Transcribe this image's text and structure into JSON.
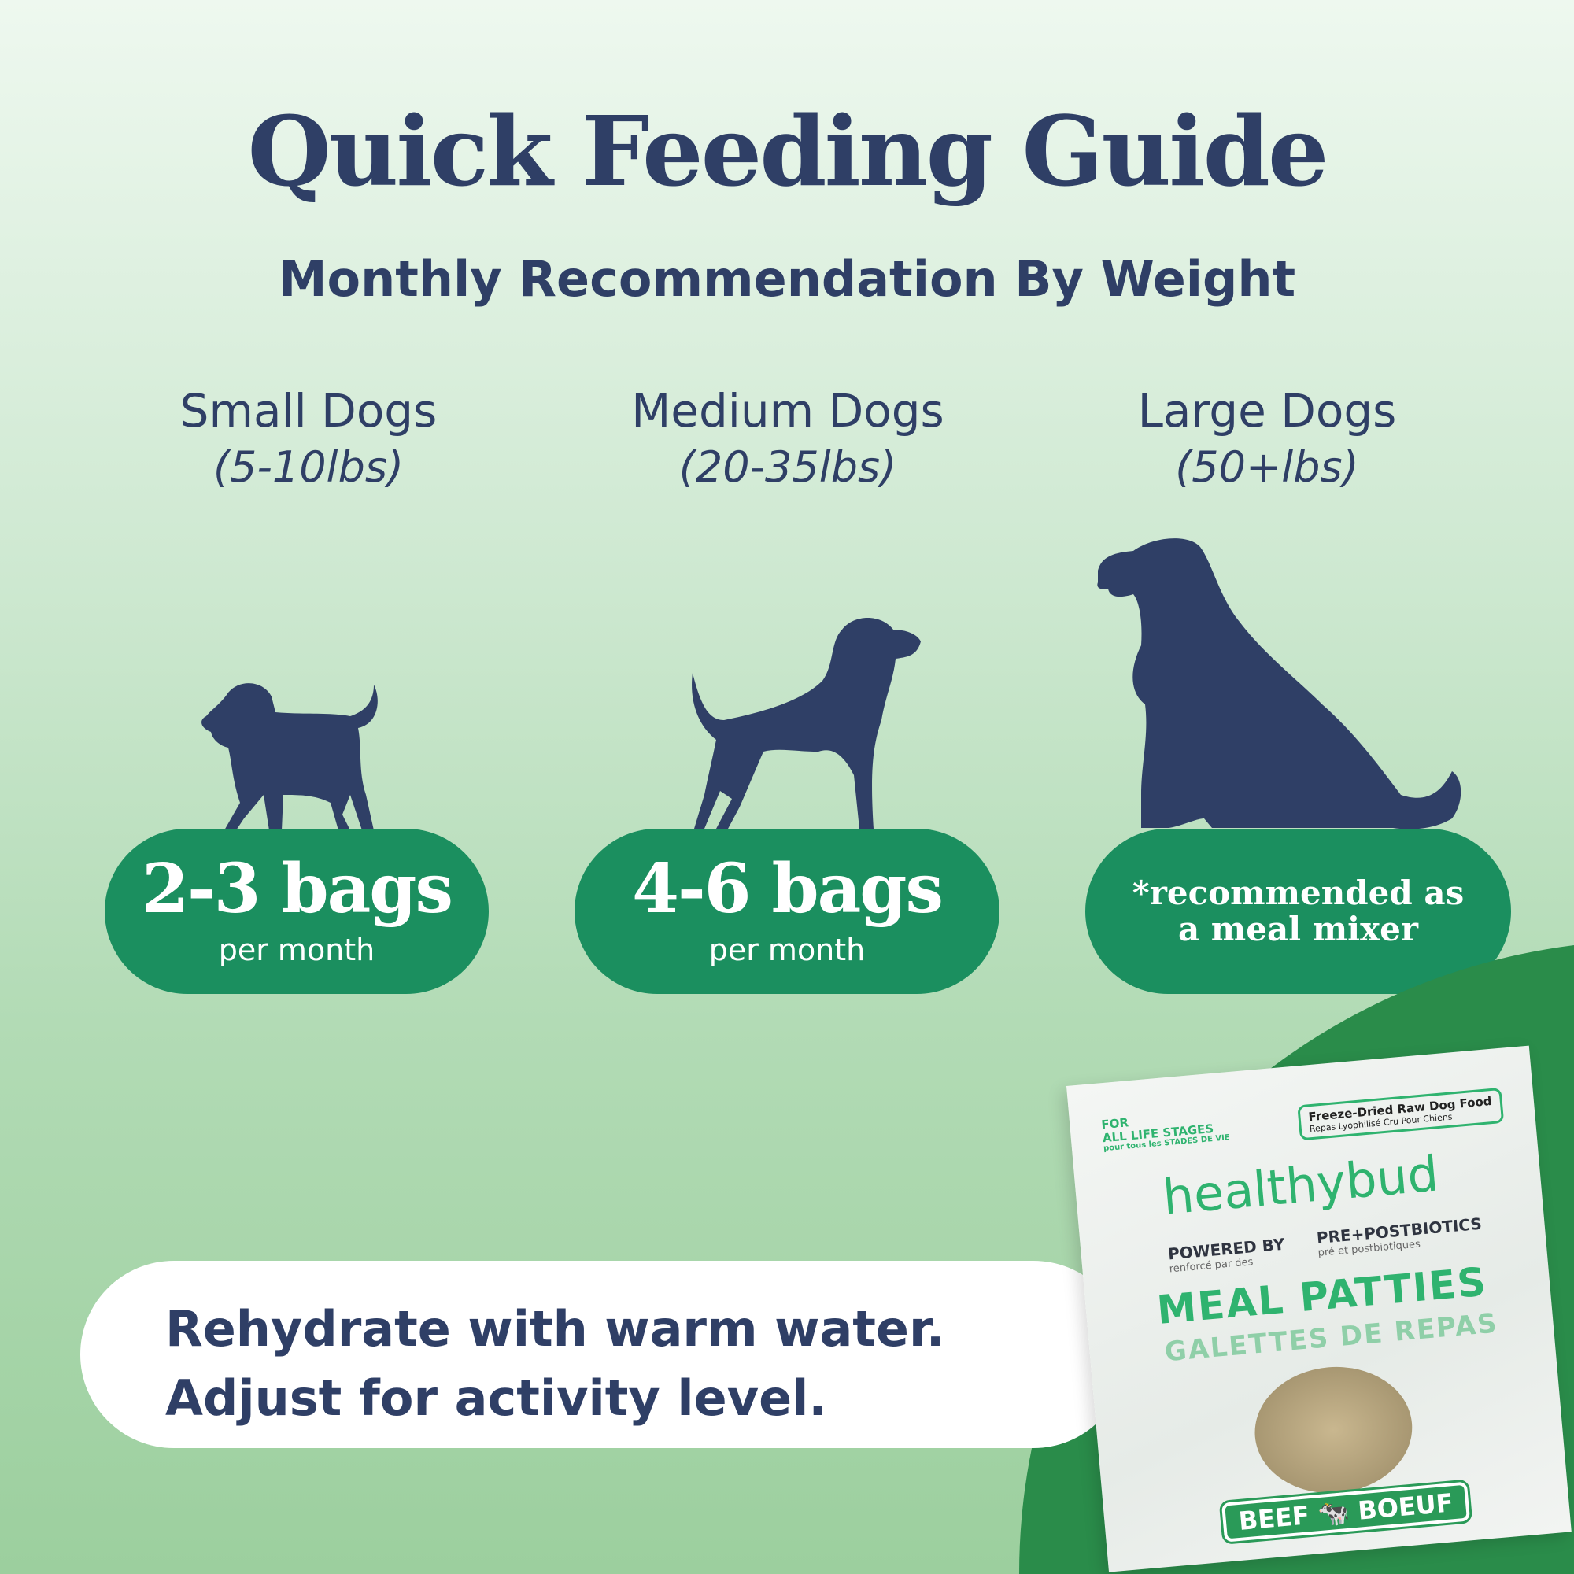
{
  "header": {
    "title": "Quick Feeding Guide",
    "subtitle": "Monthly Recommendation By Weight"
  },
  "columns": [
    {
      "label": "Small Dogs",
      "range": "(5-10lbs)",
      "amount": "2-3 bags",
      "unit": "per month",
      "icon": "small-dog-silhouette"
    },
    {
      "label": "Medium Dogs",
      "range": "(20-35lbs)",
      "amount": "4-6 bags",
      "unit": "per month",
      "icon": "medium-dog-silhouette"
    },
    {
      "label": "Large Dogs",
      "range": "(50+lbs)",
      "note_line1": "*recommended as",
      "note_line2": "a meal mixer",
      "icon": "large-dog-silhouette"
    }
  ],
  "banner": {
    "line1": "Rehydrate with warm water.",
    "line2": "Adjust for activity level."
  },
  "product": {
    "badge_line1": "Freeze-Dried Raw Dog Food",
    "badge_line2": "Repas Lyophilisé Cru Pour Chiens",
    "life_stage_1": "FOR",
    "life_stage_2": "ALL LIFE STAGES",
    "life_stage_fr": "pour tous les STADES DE VIE",
    "brand": "healthybud",
    "powered_by": "POWERED BY",
    "powered_by_fr": "renforcé par des",
    "biotics": "PRE+POSTBIOTICS",
    "biotics_fr": "pré et postbiotiques",
    "name": "MEAL PATTIES",
    "name_fr": "GALETTES DE REPAS",
    "flavor": "BEEF",
    "flavor_fr": "BOEUF"
  },
  "colors": {
    "navy": "#2f3f66",
    "pill_green": "#1b8f5f",
    "circle_green": "#2a8c4a",
    "brand_green": "#2fb36f"
  }
}
